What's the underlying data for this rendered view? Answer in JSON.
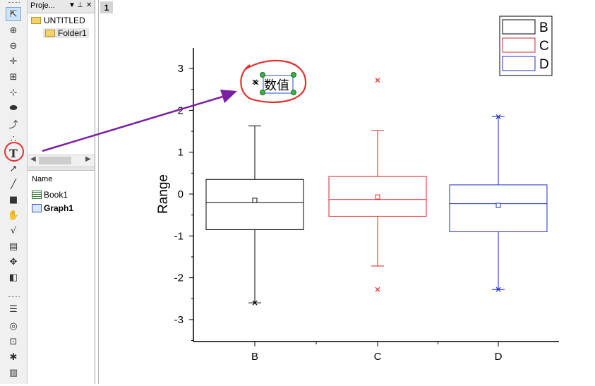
{
  "explorer": {
    "title": "Proje...",
    "root": "UNTITLED",
    "folder": "Folder1",
    "column_header": "Name",
    "items": [
      {
        "label": "Book1",
        "kind": "workbook"
      },
      {
        "label": "Graph1",
        "kind": "graph"
      }
    ]
  },
  "graph": {
    "page_number": "1",
    "text_label": "数值",
    "colors": {
      "B": "#000000",
      "C": "#d62728",
      "D": "#1f2ebf",
      "highlight": "#e53030",
      "arrow": "#7b1fa2"
    }
  },
  "chart_data": {
    "type": "box",
    "categories": [
      "B",
      "C",
      "D"
    ],
    "ylabel": "Range",
    "xlabel": "",
    "ylim": [
      -3.5,
      3.5
    ],
    "yticks": [
      "-3",
      "-2",
      "-1",
      "0",
      "1",
      "2",
      "3"
    ],
    "legend": {
      "position": "top-right",
      "entries": [
        "B",
        "C",
        "D"
      ]
    },
    "series": [
      {
        "name": "B",
        "color": "#000000",
        "whisker_low": -2.6,
        "q1": -0.85,
        "median": -0.2,
        "mean": -0.15,
        "q3": 0.35,
        "whisker_high": 1.63,
        "outliers_cross": [
          -2.6
        ],
        "outliers_x": [
          2.68
        ]
      },
      {
        "name": "C",
        "color": "#d62728",
        "whisker_low": -1.72,
        "q1": -0.53,
        "median": -0.13,
        "mean": -0.07,
        "q3": 0.42,
        "whisker_high": 1.52,
        "outliers_cross": [],
        "outliers_x": [
          2.72,
          -2.28
        ]
      },
      {
        "name": "D",
        "color": "#1f2ebf",
        "whisker_low": -2.28,
        "q1": -0.9,
        "median": -0.23,
        "mean": -0.27,
        "q3": 0.22,
        "whisker_high": 1.85,
        "outliers_cross": [
          -2.28,
          1.85
        ],
        "outliers_x": []
      }
    ]
  }
}
